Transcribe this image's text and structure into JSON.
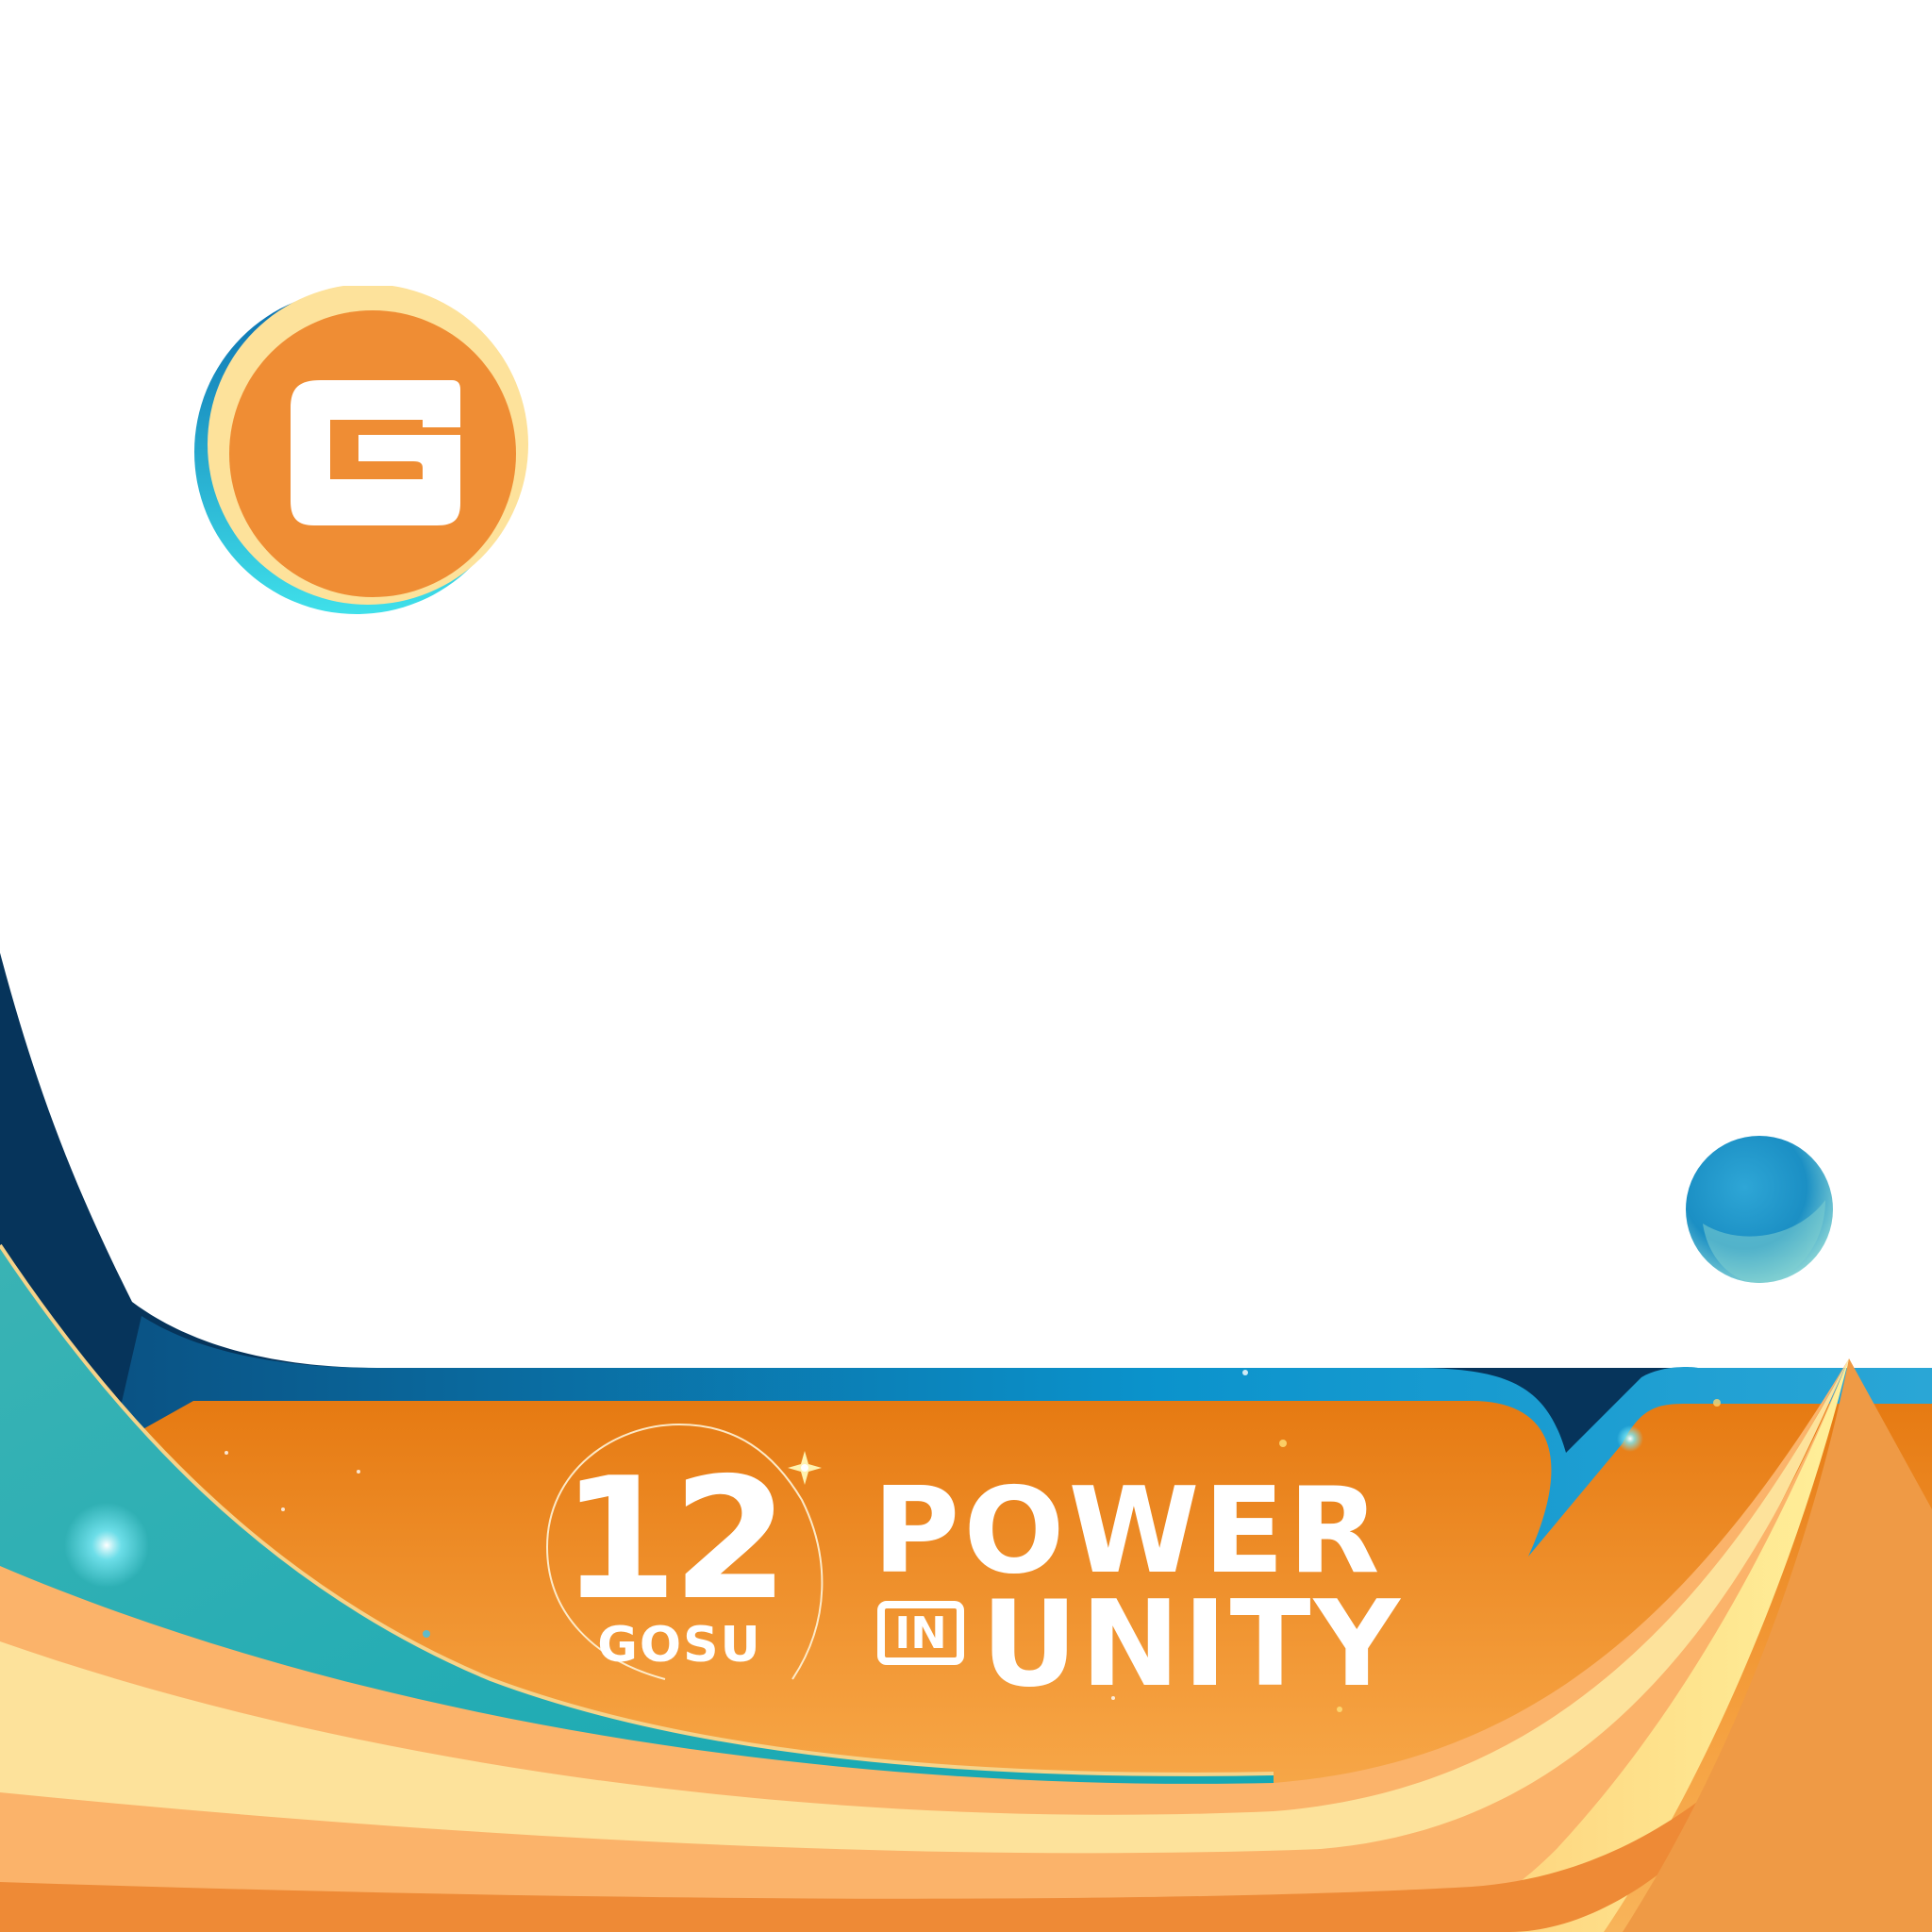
{
  "logo": {
    "letter": "G",
    "colors": {
      "orange": "#ef8d34",
      "cream": "#fde29b",
      "teal": "#1fb6cf"
    }
  },
  "event": {
    "number": "12",
    "brand": "GOSU",
    "title_line1": "POWER",
    "connector": "IN",
    "title_line2": "UNITY"
  },
  "palette": {
    "navy": "#06345b",
    "blue": "#0b8ec7",
    "orange": "#ec8424",
    "peach": "#fbb36a",
    "yellow": "#fde99a",
    "teal": "#3ab3b4"
  },
  "icons": [
    "g-logo-icon",
    "planet-icon",
    "star-sparkle-icon"
  ]
}
